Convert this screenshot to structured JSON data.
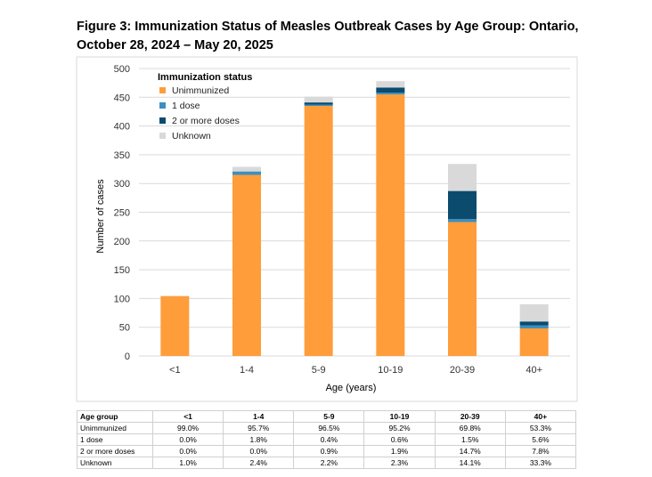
{
  "title": "Figure 3: Immunization Status of Measles Outbreak Cases by Age Group: Ontario, October 28, 2024 – May 20, 2025",
  "colors": {
    "unimmunized": "#ff9d3b",
    "one_dose": "#3b8fc0",
    "two_doses": "#0a4b6e",
    "unknown": "#d9d9d9"
  },
  "chart_data": {
    "type": "bar",
    "stacked": true,
    "title": "Figure 3: Immunization Status of Measles Outbreak Cases by Age Group: Ontario, October 28, 2024 – May 20, 2025",
    "xlabel": "Age (years)",
    "ylabel": "Number of cases",
    "ylim": [
      0,
      500
    ],
    "yticks": [
      0,
      50,
      100,
      150,
      200,
      250,
      300,
      350,
      400,
      450,
      500
    ],
    "categories": [
      "<1",
      "1-4",
      "5-9",
      "10-19",
      "20-39",
      "40+"
    ],
    "legend_title": "Immunization status",
    "legend_position": "top-left",
    "series": [
      {
        "name": "Unimmunized",
        "color_key": "unimmunized",
        "values": [
          104,
          315,
          435,
          455,
          233,
          48
        ]
      },
      {
        "name": "1 dose",
        "color_key": "one_dose",
        "values": [
          0,
          6,
          2,
          3,
          5,
          5
        ]
      },
      {
        "name": "2 or more doses",
        "color_key": "two_doses",
        "values": [
          0,
          0,
          4,
          9,
          49,
          7
        ]
      },
      {
        "name": "Unknown",
        "color_key": "unknown",
        "values": [
          1,
          8,
          10,
          11,
          47,
          30
        ]
      }
    ]
  },
  "table": {
    "headers": [
      "Age group",
      "<1",
      "1-4",
      "5-9",
      "10-19",
      "20-39",
      "40+"
    ],
    "rows": [
      [
        "Unimmunized",
        "99.0%",
        "95.7%",
        "96.5%",
        "95.2%",
        "69.8%",
        "53.3%"
      ],
      [
        "1 dose",
        "0.0%",
        "1.8%",
        "0.4%",
        "0.6%",
        "1.5%",
        "5.6%"
      ],
      [
        "2 or more doses",
        "0.0%",
        "0.0%",
        "0.9%",
        "1.9%",
        "14.7%",
        "7.8%"
      ],
      [
        "Unknown",
        "1.0%",
        "2.4%",
        "2.2%",
        "2.3%",
        "14.1%",
        "33.3%"
      ]
    ]
  }
}
